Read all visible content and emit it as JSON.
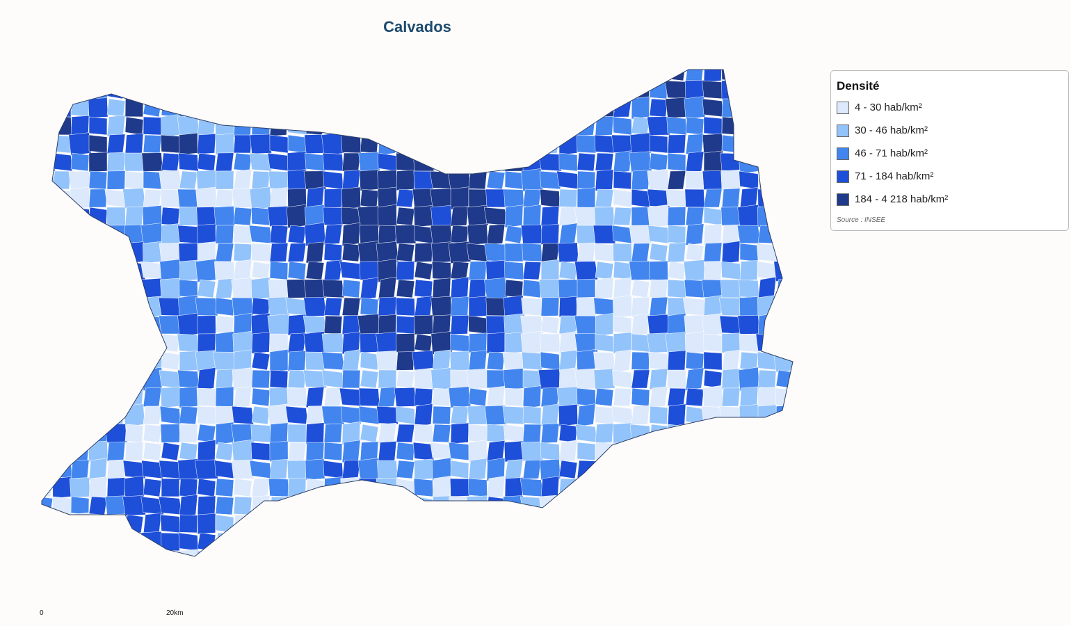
{
  "title": "Calvados",
  "legend": {
    "title": "Densité",
    "items": [
      {
        "label": "4 - 30 hab/km²",
        "color": "#dce9fc"
      },
      {
        "label": "30 - 46 hab/km²",
        "color": "#93c3fb"
      },
      {
        "label": "46 - 71 hab/km²",
        "color": "#4285ef"
      },
      {
        "label": "71 - 184 hab/km²",
        "color": "#1e4fd8"
      },
      {
        "label": "184 - 4 218 hab/km²",
        "color": "#1f3a8a"
      }
    ],
    "source": "Source : INSEE"
  },
  "scale": {
    "start": "0",
    "end": "20km"
  }
}
